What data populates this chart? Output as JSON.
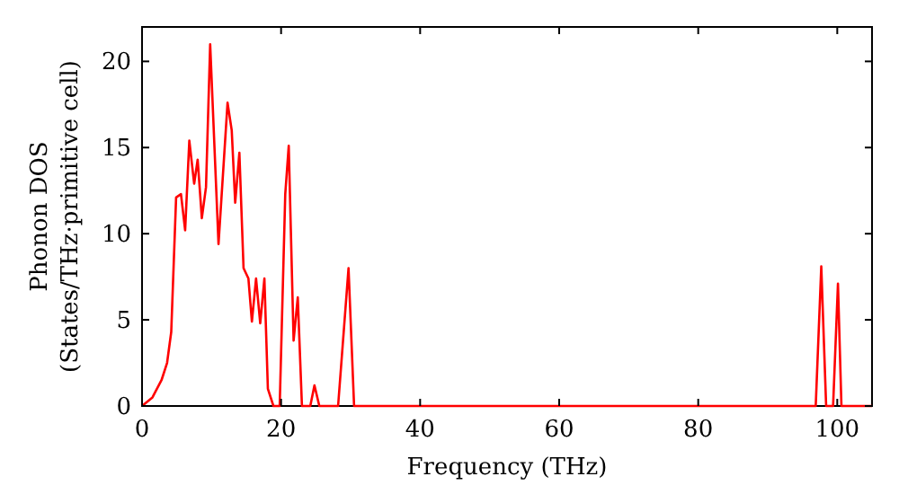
{
  "chart_data": {
    "type": "line",
    "xlabel": "Frequency (THz)",
    "ylabel": "Phonon DOS\n(States/THz·primitive cell)",
    "xlim": [
      0,
      105
    ],
    "ylim": [
      0,
      22
    ],
    "xticks": [
      0,
      20,
      40,
      60,
      80,
      100
    ],
    "yticks": [
      0,
      5,
      10,
      15,
      20
    ],
    "grid": false,
    "line_style": "solid",
    "series": [
      {
        "color": "#ff0000",
        "x": [
          0,
          1.5,
          2.8,
          3.6,
          4.2,
          4.9,
          5.6,
          6.2,
          6.8,
          7.5,
          8,
          8.6,
          9.2,
          9.8,
          11,
          12.3,
          12.9,
          13.4,
          14,
          14.6,
          15.3,
          15.8,
          16.4,
          17,
          17.6,
          18.1,
          18.9,
          19.8,
          20.6,
          21.1,
          21.8,
          22.4,
          23,
          24.2,
          24.8,
          25.5,
          28.2,
          29.7,
          30.5,
          96.9,
          97.7,
          98.4,
          99.4,
          100.1,
          100.6,
          105
        ],
        "values": [
          0,
          0.5,
          1.5,
          2.5,
          4.3,
          12.1,
          12.3,
          10.2,
          15.4,
          12.9,
          14.3,
          10.9,
          12.7,
          21,
          9.4,
          17.6,
          16,
          11.8,
          14.7,
          8,
          7.4,
          4.9,
          7.4,
          4.8,
          7.4,
          1,
          0,
          0,
          12.3,
          15.1,
          3.8,
          6.3,
          0,
          0,
          1.2,
          0,
          0,
          8,
          0,
          0,
          8.1,
          0,
          0,
          7.1,
          0,
          0
        ]
      }
    ]
  }
}
